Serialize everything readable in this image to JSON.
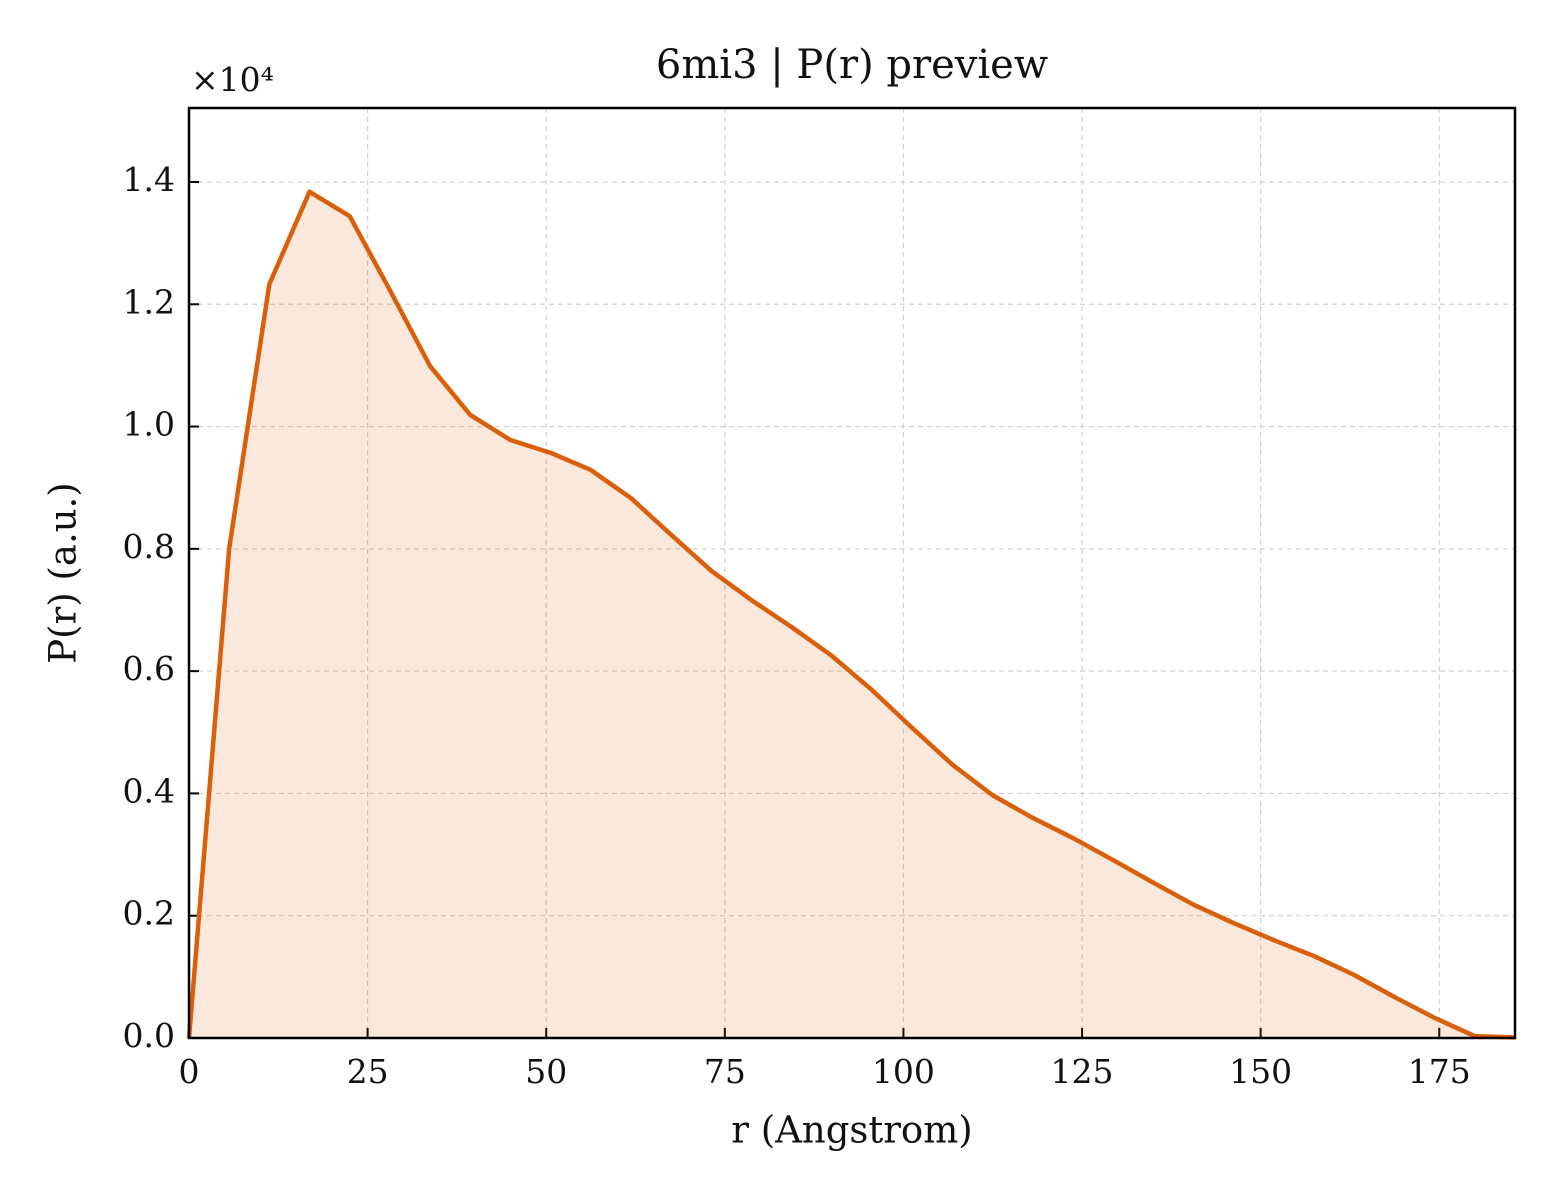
{
  "chart_data": {
    "type": "area",
    "title": "6mi3 | P(r) preview",
    "x_label": "r (Angstrom)",
    "y_label": "P(r) (a.u.)",
    "y_offset_label": "×10⁴",
    "color": "#d95f0a",
    "grid": true,
    "xlim": [
      0,
      185.6
    ],
    "ylim": [
      0,
      1.521
    ],
    "xticks": [
      0,
      25,
      50,
      75,
      100,
      125,
      150,
      175
    ],
    "yticks": [
      {
        "value": 0,
        "label": "0.0"
      },
      0.2,
      0.4,
      0.6,
      0.8,
      {
        "value": 1,
        "label": "1.0"
      },
      1.2,
      1.4
    ],
    "x": [
      0,
      5.62,
      11.25,
      16.87,
      22.5,
      28.12,
      33.74,
      39.37,
      44.99,
      50.62,
      56.24,
      61.86,
      67.49,
      73.11,
      78.74,
      84.36,
      89.98,
      95.61,
      101.23,
      106.86,
      112.48,
      118.1,
      123.73,
      129.35,
      134.98,
      140.6,
      146.22,
      151.85,
      157.47,
      163.1,
      168.72,
      174.34,
      179.97,
      185.6
    ],
    "series": [
      {
        "name": "P(r)",
        "color": "#d95f0a",
        "values": [
          0,
          0.8,
          1.233,
          1.384,
          1.344,
          1.223,
          1.099,
          1.019,
          0.978,
          0.957,
          0.929,
          0.883,
          0.823,
          0.764,
          0.716,
          0.672,
          0.625,
          0.569,
          0.507,
          0.447,
          0.397,
          0.36,
          0.327,
          0.291,
          0.254,
          0.218,
          0.188,
          0.16,
          0.134,
          0.103,
          0.067,
          0.033,
          0.003,
          0.001
        ]
      }
    ]
  }
}
